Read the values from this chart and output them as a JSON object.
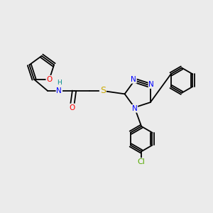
{
  "background_color": "#ebebeb",
  "atom_colors": {
    "O": "#ff0000",
    "N": "#0000ff",
    "S": "#ccaa00",
    "Cl": "#55aa00",
    "C": "#000000",
    "H": "#008b8b"
  },
  "bond_color": "#000000",
  "font_size": 7.5,
  "lw": 1.3
}
